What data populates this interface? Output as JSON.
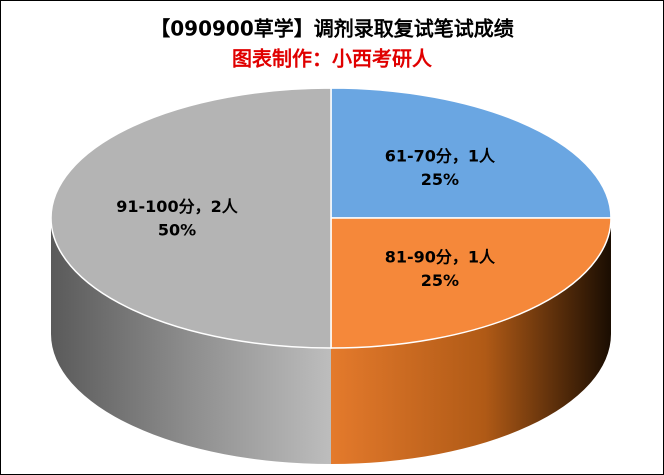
{
  "chart_data": {
    "type": "pie3d",
    "title": "【090900草学】调剂录取复试笔试成绩",
    "subtitle": "图表制作：小西考研人",
    "categories": [
      "61-70分",
      "81-90分",
      "91-100分"
    ],
    "values": [
      1,
      1,
      2
    ],
    "value_labels": [
      "1人",
      "1人",
      "2人"
    ],
    "percentages": [
      25,
      25,
      50
    ],
    "percentage_labels": [
      "25%",
      "25%",
      "50%"
    ],
    "label_separator": "，",
    "colors": [
      "#6aa6e2",
      "#f5883a",
      "#b4b4b4"
    ]
  }
}
